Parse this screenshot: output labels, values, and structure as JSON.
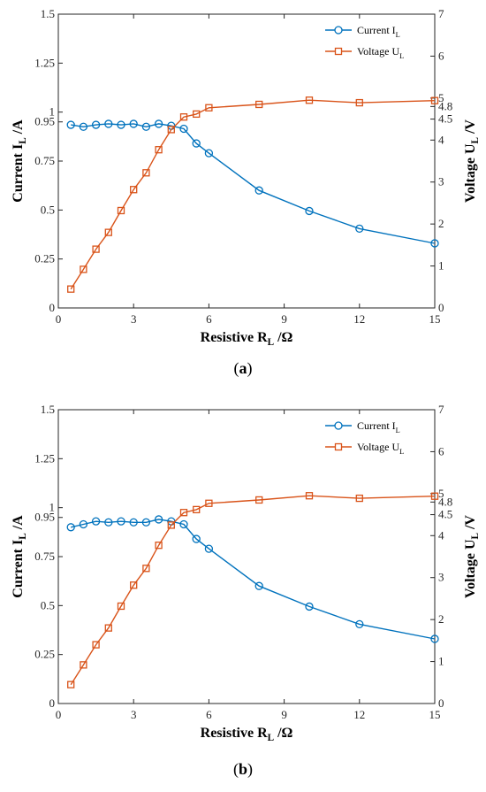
{
  "figure": {
    "panels": [
      {
        "caption_letter": "a"
      },
      {
        "caption_letter": "b"
      }
    ]
  },
  "chart_data": [
    {
      "type": "line",
      "panel": "a",
      "xlabel": "Resistive R",
      "xlabel_sub": "L",
      "xlabel_unit": " /Ω",
      "ylabel_left": "Current I",
      "ylabel_left_sub": "L",
      "ylabel_left_unit": " /A",
      "ylabel_right": "Voltage U",
      "ylabel_right_sub": "L",
      "ylabel_right_unit": " /V",
      "xlim": [
        0,
        15
      ],
      "ylim_left": [
        0,
        1.5
      ],
      "ylim_right": [
        0,
        7
      ],
      "xticks": [
        0,
        3,
        6,
        9,
        12,
        15
      ],
      "xtick_labels": [
        "0",
        "3",
        "6",
        "9",
        "12",
        "15"
      ],
      "yticks_left": [
        0,
        0.25,
        0.5,
        0.75,
        0.95,
        1,
        1.25,
        1.5
      ],
      "ytick_labels_left": [
        "0",
        "0.25",
        "0.5",
        "0.75",
        "0.95",
        "1",
        "1.25",
        "1.5"
      ],
      "yticks_right": [
        0,
        1,
        2,
        3,
        4,
        4.5,
        4.8,
        5,
        6,
        7
      ],
      "ytick_labels_right": [
        "0",
        "1",
        "2",
        "3",
        "4",
        "4.5",
        "4.8",
        "5",
        "6",
        "7"
      ],
      "legend_position": "top-right",
      "series": [
        {
          "name": "Current I",
          "name_sub": "L",
          "axis": "left",
          "marker": "circle",
          "color": "#0072BD",
          "x": [
            0.5,
            1,
            1.5,
            2,
            2.5,
            3,
            3.5,
            4,
            4.5,
            5,
            5.5,
            6,
            8,
            10,
            12,
            15
          ],
          "y": [
            0.935,
            0.925,
            0.935,
            0.94,
            0.935,
            0.94,
            0.925,
            0.94,
            0.93,
            0.915,
            0.84,
            0.79,
            0.6,
            0.495,
            0.405,
            0.33
          ]
        },
        {
          "name": "Voltage U",
          "name_sub": "L",
          "axis": "right",
          "marker": "square",
          "color": "#D95319",
          "x": [
            0.5,
            1,
            1.5,
            2,
            2.5,
            3,
            3.5,
            4,
            4.5,
            5,
            5.5,
            6,
            8,
            10,
            12,
            15
          ],
          "y": [
            0.45,
            0.92,
            1.4,
            1.8,
            2.32,
            2.82,
            3.22,
            3.77,
            4.25,
            4.55,
            4.62,
            4.77,
            4.85,
            4.95,
            4.89,
            4.94
          ]
        }
      ]
    },
    {
      "type": "line",
      "panel": "b",
      "xlabel": "Resistive R",
      "xlabel_sub": "L",
      "xlabel_unit": " /Ω",
      "ylabel_left": "Current I",
      "ylabel_left_sub": "L",
      "ylabel_left_unit": " /A",
      "ylabel_right": "Voltage U",
      "ylabel_right_sub": "L",
      "ylabel_right_unit": " /V",
      "xlim": [
        0,
        15
      ],
      "ylim_left": [
        0,
        1.5
      ],
      "ylim_right": [
        0,
        7
      ],
      "xticks": [
        0,
        3,
        6,
        9,
        12,
        15
      ],
      "xtick_labels": [
        "0",
        "3",
        "6",
        "9",
        "12",
        "15"
      ],
      "yticks_left": [
        0,
        0.25,
        0.5,
        0.75,
        0.95,
        1,
        1.25,
        1.5
      ],
      "ytick_labels_left": [
        "0",
        "0.25",
        "0.5",
        "0.75",
        "0.95",
        "1",
        "1.25",
        "1.5"
      ],
      "yticks_right": [
        0,
        1,
        2,
        3,
        4,
        4.5,
        4.8,
        5,
        6,
        7
      ],
      "ytick_labels_right": [
        "0",
        "1",
        "2",
        "3",
        "4",
        "4.5",
        "4.8",
        "5",
        "6",
        "7"
      ],
      "legend_position": "top-right",
      "series": [
        {
          "name": "Current I",
          "name_sub": "L",
          "axis": "left",
          "marker": "circle",
          "color": "#0072BD",
          "x": [
            0.5,
            1,
            1.5,
            2,
            2.5,
            3,
            3.5,
            4,
            4.5,
            5,
            5.5,
            6,
            8,
            10,
            12,
            15
          ],
          "y": [
            0.9,
            0.915,
            0.93,
            0.925,
            0.93,
            0.925,
            0.925,
            0.94,
            0.93,
            0.915,
            0.84,
            0.79,
            0.6,
            0.495,
            0.405,
            0.33
          ]
        },
        {
          "name": "Voltage U",
          "name_sub": "L",
          "axis": "right",
          "marker": "square",
          "color": "#D95319",
          "x": [
            0.5,
            1,
            1.5,
            2,
            2.5,
            3,
            3.5,
            4,
            4.5,
            5,
            5.5,
            6,
            8,
            10,
            12,
            15
          ],
          "y": [
            0.45,
            0.92,
            1.4,
            1.8,
            2.32,
            2.82,
            3.22,
            3.77,
            4.25,
            4.55,
            4.62,
            4.77,
            4.85,
            4.95,
            4.89,
            4.94
          ]
        }
      ]
    }
  ]
}
